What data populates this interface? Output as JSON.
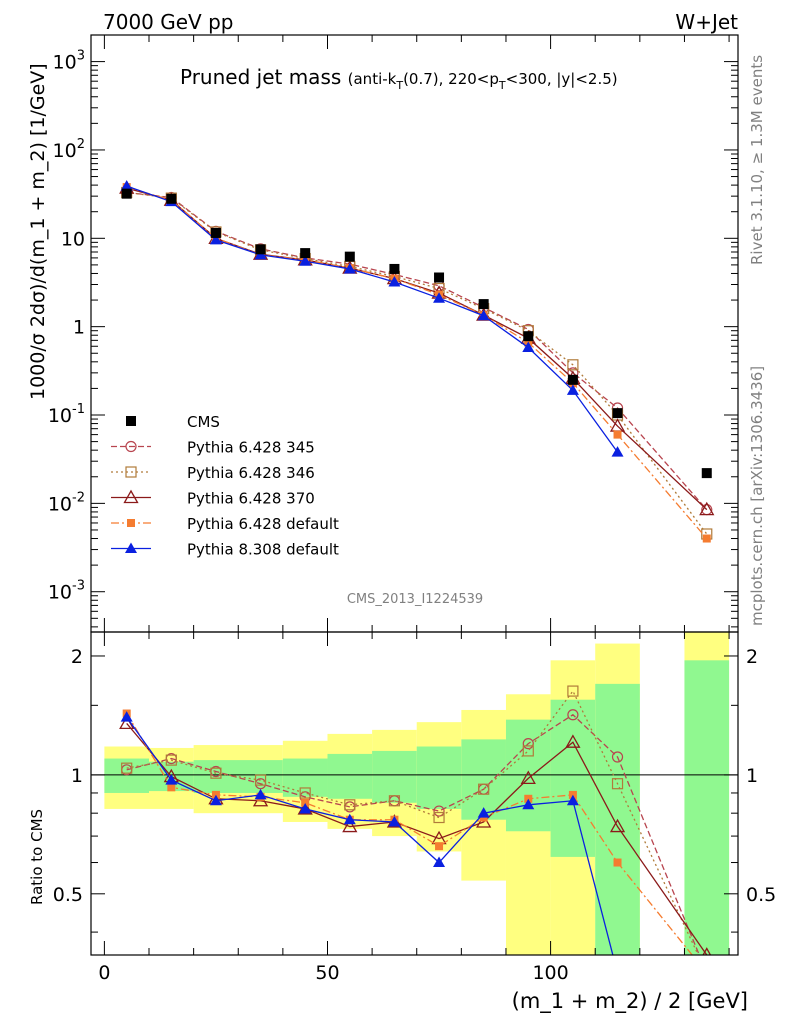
{
  "header": {
    "left": "7000 GeV pp",
    "right": "W+Jet"
  },
  "side_labels": {
    "rivet": "Rivet 3.1.10, ≥ 1.3M events",
    "mcplots": "mcplots.cern.ch [arXiv:1306.3436]"
  },
  "analysis_id": "CMS_2013_I1224539",
  "chart_data": {
    "type": "scatter",
    "title": "Pruned jet mass",
    "title_sub": {
      "pre": "(anti-k",
      "sub1": "T",
      "mid1": "(0.7), 220<p",
      "sub2": "T",
      "post": "<300, |y|<2.5)"
    },
    "xlabel": "(m_1 + m_2) / 2 [GeV]",
    "ylabel": "1000/σ 2dσ)/d(m_1 + m_2) [1/GeV]",
    "ratio_ylabel": "Ratio to CMS",
    "x": [
      5,
      15,
      25,
      35,
      45,
      55,
      65,
      75,
      85,
      95,
      105,
      115,
      135
    ],
    "xlim": [
      -3,
      142
    ],
    "xticks": [
      0,
      50,
      100
    ],
    "yscale": "log",
    "ylim": [
      0.00035,
      2000
    ],
    "yticks": [
      {
        "v": 0.001,
        "base": "10",
        "exp": "-3"
      },
      {
        "v": 0.01,
        "base": "10",
        "exp": "-2"
      },
      {
        "v": 0.1,
        "base": "10",
        "exp": "-1"
      },
      {
        "v": 1,
        "base": "1",
        "exp": ""
      },
      {
        "v": 10,
        "base": "10",
        "exp": ""
      },
      {
        "v": 100,
        "base": "10",
        "exp": "2"
      },
      {
        "v": 1000,
        "base": "10",
        "exp": "3"
      }
    ],
    "ratio_ylim": [
      0.35,
      2.3
    ],
    "ratio_yticks": [
      0.5,
      1,
      2
    ],
    "legend_position": "lower-left",
    "bands": [
      {
        "x0": 0,
        "x1": 10,
        "inner": [
          0.9,
          1.1
        ],
        "outer": [
          0.82,
          1.18
        ]
      },
      {
        "x0": 10,
        "x1": 20,
        "inner": [
          0.91,
          1.08
        ],
        "outer": [
          0.82,
          1.17
        ]
      },
      {
        "x0": 20,
        "x1": 40,
        "inner": [
          0.9,
          1.09
        ],
        "outer": [
          0.8,
          1.19
        ]
      },
      {
        "x0": 40,
        "x1": 50,
        "inner": [
          0.88,
          1.1
        ],
        "outer": [
          0.76,
          1.22
        ]
      },
      {
        "x0": 50,
        "x1": 60,
        "inner": [
          0.87,
          1.13
        ],
        "outer": [
          0.73,
          1.27
        ]
      },
      {
        "x0": 60,
        "x1": 70,
        "inner": [
          0.85,
          1.15
        ],
        "outer": [
          0.7,
          1.3
        ]
      },
      {
        "x0": 70,
        "x1": 80,
        "inner": [
          0.82,
          1.18
        ],
        "outer": [
          0.64,
          1.36
        ]
      },
      {
        "x0": 80,
        "x1": 90,
        "inner": [
          0.77,
          1.23
        ],
        "outer": [
          0.54,
          1.46
        ]
      },
      {
        "x0": 90,
        "x1": 100,
        "inner": [
          0.72,
          1.38
        ],
        "outer": [
          0.3,
          1.6
        ]
      },
      {
        "x0": 100,
        "x1": 110,
        "inner": [
          0.62,
          1.55
        ],
        "outer": [
          0.3,
          1.95
        ]
      },
      {
        "x0": 110,
        "x1": 120,
        "inner": [
          0.3,
          1.7
        ],
        "outer": [
          0.3,
          2.15
        ]
      },
      {
        "x0": 130,
        "x1": 140,
        "inner": [
          0.3,
          1.95
        ],
        "outer": [
          0.3,
          2.4
        ]
      }
    ],
    "data": {
      "name": "CMS",
      "values": [
        32,
        28,
        11.5,
        7.5,
        6.8,
        6.2,
        4.5,
        3.6,
        1.8,
        0.78,
        0.25,
        0.105,
        0.022
      ]
    },
    "series": [
      {
        "name": "Pythia 6.428 345",
        "color": "#b8454f",
        "marker": "circle-open",
        "dash": "6,3",
        "values": [
          33,
          29,
          12,
          7.6,
          6,
          5.1,
          3.9,
          2.9,
          1.65,
          0.93,
          0.3,
          0.12,
          0.0085
        ],
        "ratio": [
          1.03,
          1.1,
          1.02,
          0.95,
          0.88,
          0.83,
          0.86,
          0.81,
          0.92,
          1.2,
          1.42,
          1.11,
          0.3
        ]
      },
      {
        "name": "Pythia 6.428 346",
        "color": "#b07b3a",
        "marker": "square-open",
        "dash": "2,3",
        "values": [
          33,
          28.5,
          11.8,
          7.4,
          5.9,
          4.8,
          3.7,
          2.7,
          1.6,
          0.9,
          0.37,
          0.1,
          0.0045
        ],
        "ratio": [
          1.04,
          1.09,
          1.01,
          0.97,
          0.9,
          0.84,
          0.86,
          0.78,
          0.92,
          1.15,
          1.63,
          0.95,
          0.3
        ]
      },
      {
        "name": "Pythia 6.428 370",
        "color": "#8b1a1a",
        "marker": "triangle-open",
        "dash": "",
        "values": [
          37,
          27,
          10,
          6.6,
          5.7,
          4.6,
          3.5,
          2.4,
          1.35,
          0.74,
          0.26,
          0.075,
          0.0085
        ],
        "ratio": [
          1.35,
          0.99,
          0.87,
          0.86,
          0.82,
          0.74,
          0.76,
          0.69,
          0.76,
          0.98,
          1.21,
          0.74,
          0.35
        ]
      },
      {
        "name": "Pythia 6.428 default",
        "color": "#f57c30",
        "marker": "square-filled",
        "dash": "8,3,2,3",
        "values": [
          38,
          27,
          10,
          6.5,
          5.7,
          4.6,
          3.5,
          2.3,
          1.35,
          0.66,
          0.23,
          0.06,
          0.004
        ],
        "ratio": [
          1.43,
          0.93,
          0.89,
          0.88,
          0.85,
          0.77,
          0.77,
          0.66,
          0.78,
          0.87,
          0.89,
          0.6,
          0.3
        ]
      },
      {
        "name": "Pythia 8.308 default",
        "color": "#0a20e0",
        "marker": "triangle-filled",
        "dash": "",
        "values": [
          39,
          26,
          9.6,
          6.5,
          5.5,
          4.5,
          3.2,
          2.1,
          1.33,
          0.58,
          0.19,
          0.038,
          null
        ],
        "ratio": [
          1.4,
          0.97,
          0.86,
          0.89,
          0.82,
          0.77,
          0.76,
          0.6,
          0.8,
          0.84,
          0.86,
          0.3,
          null
        ]
      }
    ]
  }
}
